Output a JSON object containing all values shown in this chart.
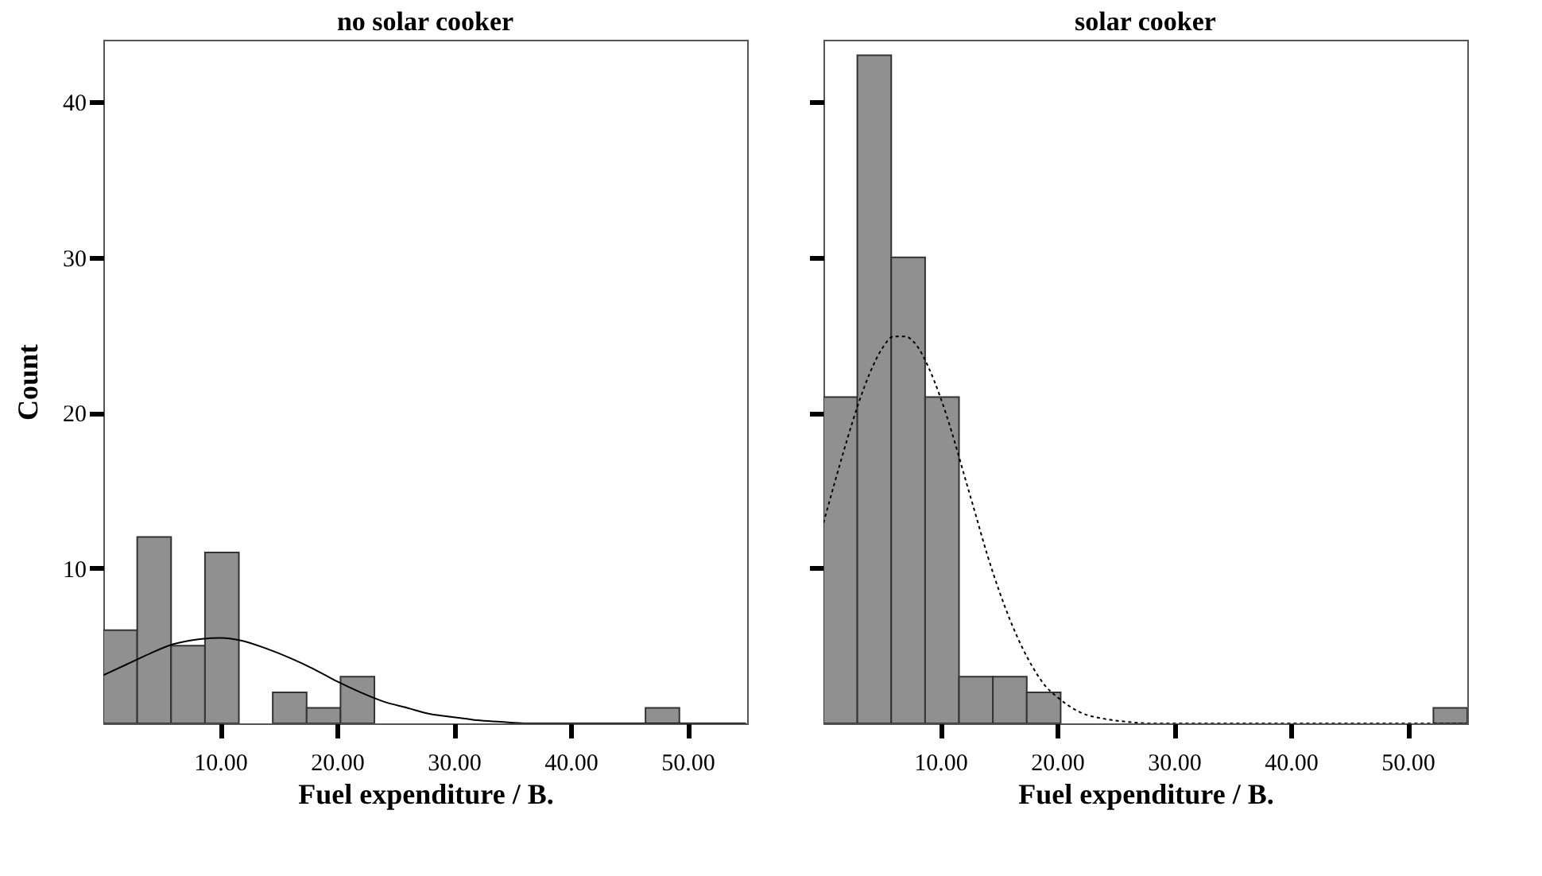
{
  "chart_data": [
    {
      "type": "histogram",
      "title": "no solar cooker",
      "xlabel": "Fuel expenditure / B.",
      "ylabel": "Count",
      "color": "#909090",
      "bins": [
        0,
        2.9,
        5.8,
        8.7,
        11.6,
        14.5,
        17.4,
        20.3,
        23.2,
        26.1,
        29,
        31.9,
        34.8,
        37.7,
        40.6,
        43.5,
        46.4,
        49.3,
        52.2,
        55.1
      ],
      "values": [
        6,
        12,
        5,
        11,
        0,
        2,
        1,
        3,
        0,
        0,
        0,
        0,
        0,
        0,
        0,
        0,
        1,
        0,
        0
      ],
      "series": [
        {
          "type": "line",
          "color": "#000000",
          "line_style": "solid",
          "x": [
            0,
            2,
            4,
            6,
            8,
            10,
            12,
            14,
            16,
            18,
            20,
            22,
            24,
            26,
            28,
            30,
            32,
            34,
            36,
            55
          ],
          "values": [
            3.1,
            3.8,
            4.5,
            5.1,
            5.4,
            5.5,
            5.3,
            4.8,
            4.2,
            3.5,
            2.7,
            2.0,
            1.4,
            1.0,
            0.6,
            0.4,
            0.2,
            0.1,
            0,
            0
          ]
        }
      ],
      "xlim": [
        0,
        55.1
      ],
      "xticks": [
        {
          "value": 10,
          "label": "10.00"
        },
        {
          "value": 20,
          "label": "20.00"
        },
        {
          "value": 30,
          "label": "30.00"
        },
        {
          "value": 40,
          "label": "40.00"
        },
        {
          "value": 50,
          "label": "50.00"
        }
      ],
      "ylim": [
        0,
        44
      ],
      "yticks": [
        10,
        20,
        30,
        40
      ],
      "grid": false
    },
    {
      "type": "histogram",
      "title": "solar cooker",
      "xlabel": "Fuel expenditure / B.",
      "color": "#909090",
      "bins": [
        0,
        2.9,
        5.8,
        8.7,
        11.6,
        14.5,
        17.4,
        20.3,
        23.2,
        26.1,
        29,
        31.9,
        34.8,
        37.7,
        40.6,
        43.5,
        46.4,
        49.3,
        52.2,
        55.1
      ],
      "values": [
        21,
        43,
        30,
        21,
        3,
        3,
        2,
        0,
        0,
        0,
        0,
        0,
        0,
        0,
        0,
        0,
        0,
        0,
        1
      ],
      "series": [
        {
          "type": "line",
          "color": "#000000",
          "line_style": "dotted",
          "x": [
            0,
            1,
            2,
            3,
            4,
            5,
            6,
            7,
            8,
            9,
            10,
            11,
            12,
            13,
            14,
            15,
            16,
            17,
            18,
            19,
            20,
            22,
            24,
            26,
            28,
            55
          ],
          "values": [
            12.9,
            15.6,
            18.2,
            20.6,
            22.6,
            24.1,
            24.9,
            24.9,
            24.3,
            22.9,
            21.0,
            18.7,
            16.1,
            13.5,
            10.9,
            8.6,
            6.6,
            4.9,
            3.5,
            2.4,
            1.7,
            0.7,
            0.3,
            0.1,
            0,
            0
          ]
        }
      ],
      "xlim": [
        0,
        55.1
      ],
      "xticks": [
        {
          "value": 10,
          "label": "10.00"
        },
        {
          "value": 20,
          "label": "20.00"
        },
        {
          "value": 30,
          "label": "30.00"
        },
        {
          "value": 40,
          "label": "40.00"
        },
        {
          "value": 50,
          "label": "50.00"
        }
      ],
      "ylim": [
        0,
        44
      ],
      "yticks": [
        10,
        20,
        30,
        40
      ],
      "tick_labels": "x",
      "grid": false
    }
  ]
}
